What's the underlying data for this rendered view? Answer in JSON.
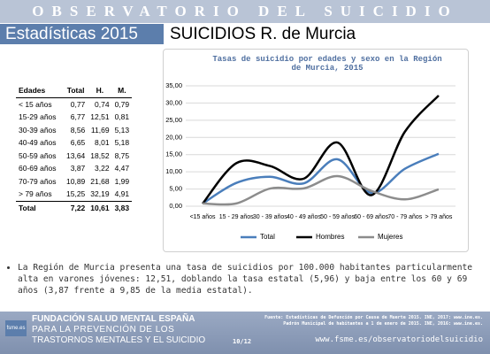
{
  "header": {
    "title": "OBSERVATORIO DEL SUICIDIO",
    "section": "Estadísticas 2015",
    "subtitle": "SUICIDIOS R. de Murcia"
  },
  "table": {
    "columns": [
      "Edades",
      "Total",
      "H.",
      "M."
    ],
    "rows": [
      [
        "< 15 años",
        "0,77",
        "0,74",
        "0,79"
      ],
      [
        "15-29 años",
        "6,77",
        "12,51",
        "0,81"
      ],
      [
        "30-39 años",
        "8,56",
        "11,69",
        "5,13"
      ],
      [
        "40-49 años",
        "6,65",
        "8,01",
        "5,18"
      ],
      [
        "50-59 años",
        "13,64",
        "18,52",
        "8,75"
      ],
      [
        "60-69 años",
        "3,87",
        "3,22",
        "4,47"
      ],
      [
        "70-79 años",
        "10,89",
        "21,68",
        "1,99"
      ],
      [
        "> 79 años",
        "15,25",
        "32,19",
        "4,91"
      ]
    ],
    "total": [
      "Total",
      "7,22",
      "10,61",
      "3,83"
    ]
  },
  "chart_data": {
    "type": "line",
    "title": "Tasas de suicidio por edades y sexo en la Región de Murcia, 2015",
    "categories": [
      "<15 años",
      "15 - 29 años",
      "30 - 39 años",
      "40 - 49 años",
      "50 - 59 años",
      "60 - 69 años",
      "70 - 79 años",
      "> 79 años"
    ],
    "series": [
      {
        "name": "Total",
        "color": "#4a7ebb",
        "values": [
          0.77,
          6.77,
          8.56,
          6.65,
          13.64,
          3.87,
          10.89,
          15.25
        ]
      },
      {
        "name": "Hombres",
        "color": "#000000",
        "values": [
          0.74,
          12.51,
          11.69,
          8.01,
          18.52,
          3.22,
          21.68,
          32.19
        ]
      },
      {
        "name": "Mujeres",
        "color": "#8c8c8c",
        "values": [
          0.79,
          0.81,
          5.13,
          5.18,
          8.75,
          4.47,
          1.99,
          4.91
        ]
      }
    ],
    "ylim": [
      0,
      35
    ],
    "yticks": [
      {
        "value": 0,
        "label": "0,00"
      },
      {
        "value": 5,
        "label": "5,00"
      },
      {
        "value": 10,
        "label": "10,00"
      },
      {
        "value": 15,
        "label": "15,00"
      },
      {
        "value": 20,
        "label": "20,00"
      },
      {
        "value": 25,
        "label": "25,00"
      },
      {
        "value": 30,
        "label": "30,00"
      },
      {
        "value": 35,
        "label": "35,00"
      }
    ],
    "grid": true,
    "smooth": true,
    "legend": "bottom"
  },
  "bullet": "La Región de Murcia presenta una tasa de suicidios por 100.000 habitantes particularmente alta en varones jóvenes: 12,51, doblando la tasa estatal (5,96) y baja entre los 60 y 69 años (3,87 frente a 9,85 de la media estatal).",
  "footer": {
    "org": "FUNDACIÓN SALUD MENTAL ESPAÑA",
    "tagline1": "PARA LA PREVENCIÓN DE LOS",
    "tagline2": "TRASTORNOS MENTALES Y EL SUICIDIO",
    "logo": "fsme.es",
    "source1": "Fuente: Estadísticas de Defunción por Causa de Muerte 2015. INE, 2017: www.ine.es.",
    "source2": "Padrón Municipal de habitantes a 1 de enero de 2015. INE, 2016: www.ine.es.",
    "page": "10/12",
    "url": "www.fsme.es/observatoriodelsuicidio"
  }
}
